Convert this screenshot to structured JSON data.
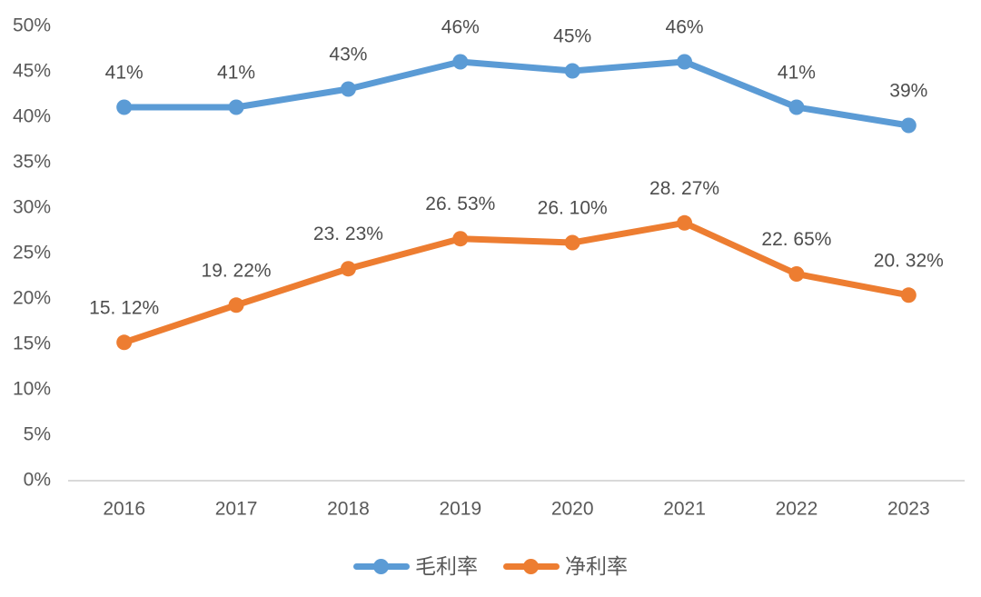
{
  "chart_data": {
    "type": "line",
    "title": "",
    "xlabel": "",
    "ylabel": "",
    "categories": [
      "2016",
      "2017",
      "2018",
      "2019",
      "2020",
      "2021",
      "2022",
      "2023"
    ],
    "series": [
      {
        "name": "毛利率",
        "color": "#5B9BD5",
        "values": [
          41,
          41,
          43,
          46,
          45,
          46,
          41,
          39
        ],
        "labels": [
          "41%",
          "41%",
          "43%",
          "46%",
          "45%",
          "46%",
          "41%",
          "39%"
        ]
      },
      {
        "name": "净利率",
        "color": "#ED7D31",
        "values": [
          15.12,
          19.22,
          23.23,
          26.53,
          26.1,
          28.27,
          22.65,
          20.32
        ],
        "labels": [
          "15. 12%",
          "19. 22%",
          "23. 23%",
          "26. 53%",
          "26. 10%",
          "28. 27%",
          "22. 65%",
          "20. 32%"
        ]
      }
    ],
    "ylim": [
      0,
      50
    ],
    "ytick_step": 5,
    "ytick_labels": [
      "0%",
      "5%",
      "10%",
      "15%",
      "20%",
      "25%",
      "30%",
      "35%",
      "40%",
      "45%",
      "50%"
    ],
    "grid": false,
    "legend_position": "bottom",
    "colors": {
      "axis_line": "#D9D9D9",
      "tick_text": "#595959",
      "data_label_text": "#4D4D4D",
      "background": "#FFFFFF"
    }
  }
}
